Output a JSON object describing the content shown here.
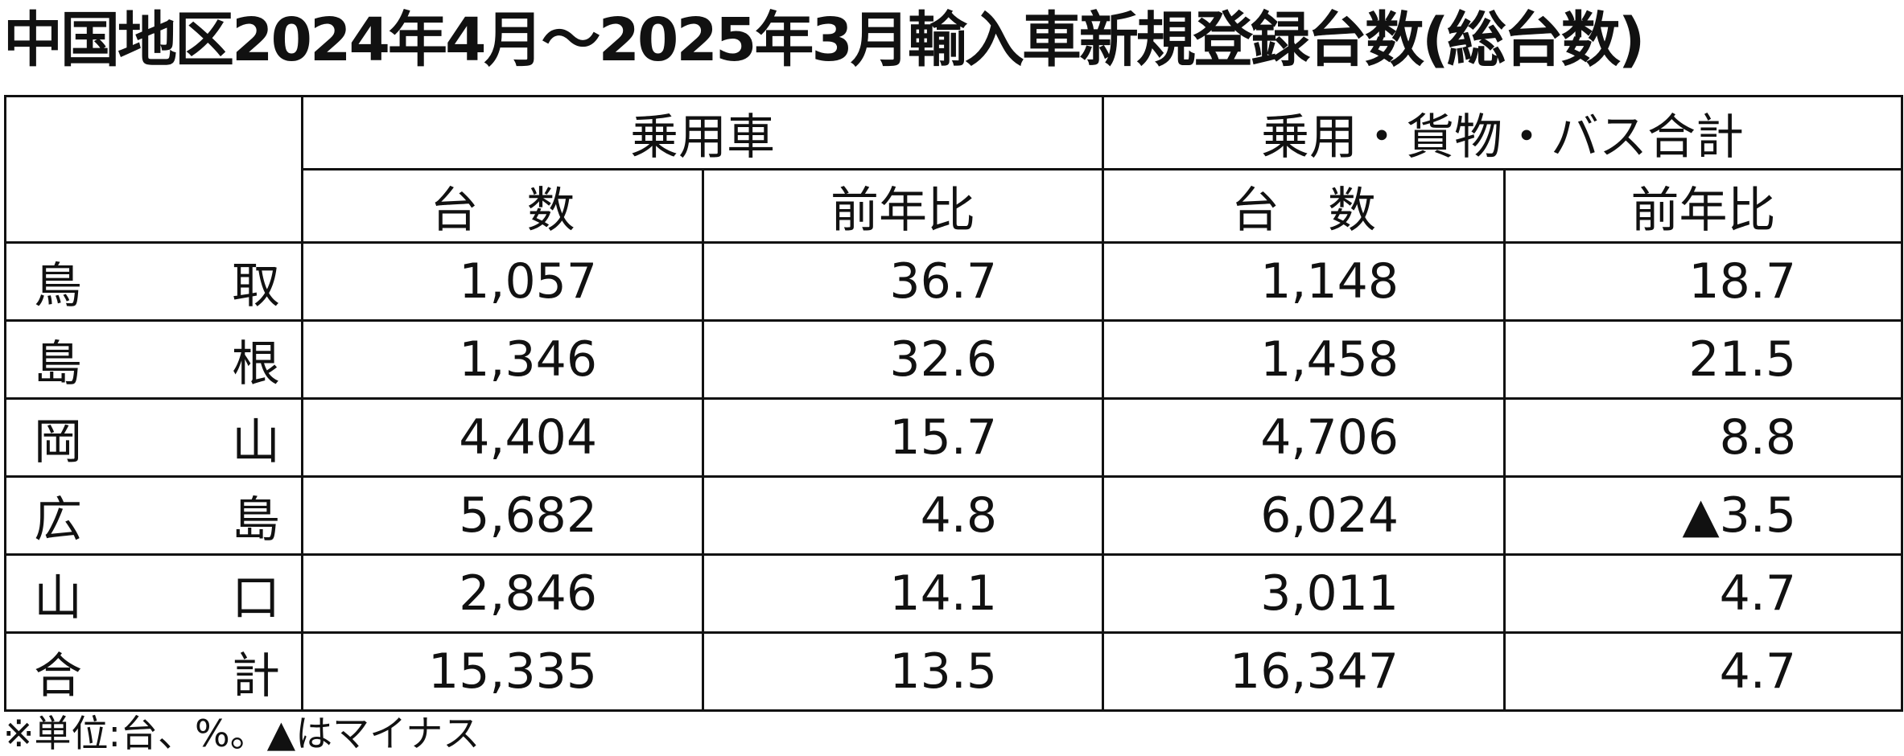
{
  "title": "中国地区2024年4月～2025年3月輸入車新規登録台数(総台数)",
  "table": {
    "groups": [
      "乗用車",
      "乗用・貨物・バス合計"
    ],
    "subheaders": [
      "台　数",
      "前年比",
      "台　数",
      "前年比"
    ],
    "rows": [
      [
        "鳥　　取",
        "1,057",
        "36.7",
        "1,148",
        "18.7"
      ],
      [
        "島　　根",
        "1,346",
        "32.6",
        "1,458",
        "21.5"
      ],
      [
        "岡　　山",
        "4,404",
        "15.7",
        "4,706",
        "8.8"
      ],
      [
        "広　　島",
        "5,682",
        "4.8",
        "6,024",
        "▲3.5"
      ],
      [
        "山　　口",
        "2,846",
        "14.1",
        "3,011",
        "4.7"
      ],
      [
        "合　　計",
        "15,335",
        "13.5",
        "16,347",
        "4.7"
      ]
    ]
  },
  "note": "※単位:台、%。▲はマイナス"
}
